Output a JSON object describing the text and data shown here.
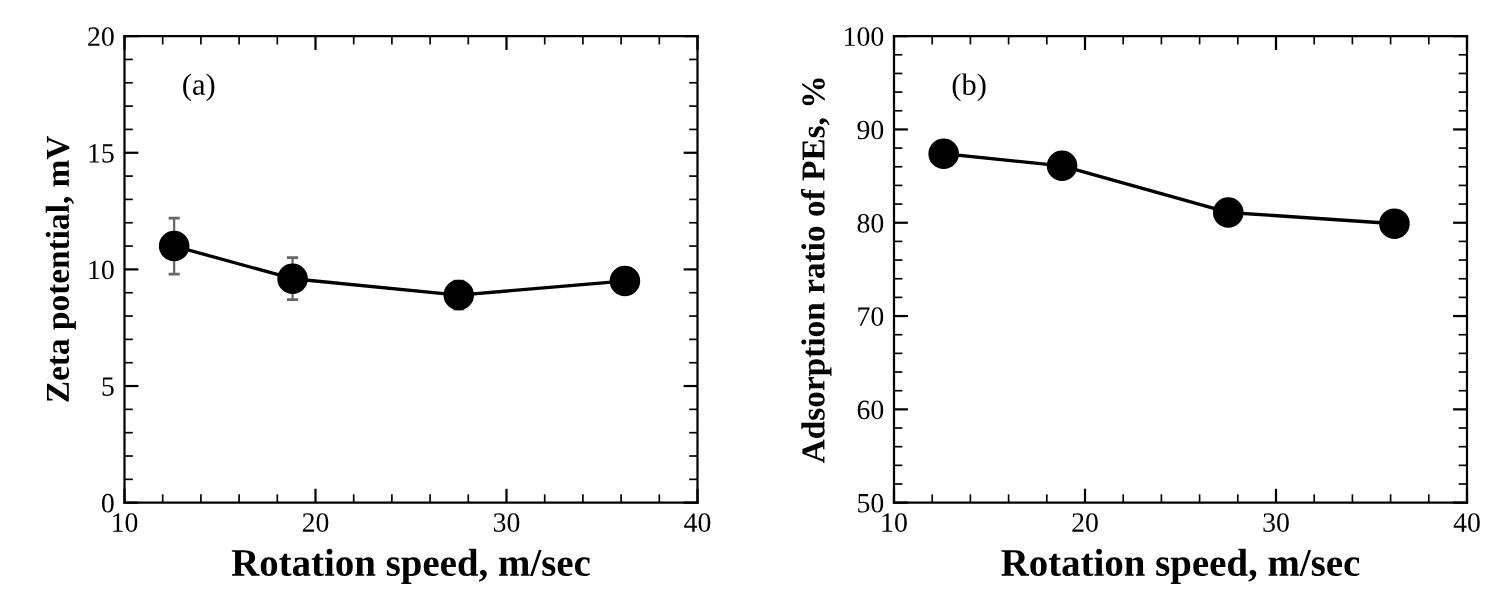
{
  "chart_data": [
    {
      "type": "line",
      "xlabel": "Rotation speed, m/sec",
      "ylabel": "Zeta potential, mV",
      "annotations": [
        "(a)"
      ],
      "x": [
        12.6,
        18.8,
        27.5,
        36.2
      ],
      "series": [
        {
          "color": "#000000",
          "values": [
            11.0,
            9.6,
            8.9,
            9.5
          ],
          "errors": [
            1.2,
            0.9,
            0.6,
            null
          ]
        }
      ],
      "xlim": [
        10,
        40
      ],
      "xticks": [
        10,
        20,
        30,
        40
      ],
      "ylim": [
        0,
        20
      ],
      "yticks": [
        0,
        5,
        10,
        15,
        20
      ],
      "marker": "circle",
      "line_style": "solid",
      "grid": false,
      "legend": false
    },
    {
      "type": "line",
      "xlabel": "Rotation speed, m/sec",
      "ylabel": "Adsorption ratio of PEs, %",
      "annotations": [
        "(b)"
      ],
      "x": [
        12.6,
        18.8,
        27.5,
        36.2
      ],
      "series": [
        {
          "color": "#000000",
          "values": [
            87.4,
            86.1,
            81.1,
            79.9
          ],
          "errors": [
            1.0,
            1.0,
            1.0,
            1.0
          ]
        }
      ],
      "xlim": [
        10,
        40
      ],
      "xticks": [
        10,
        20,
        30,
        40
      ],
      "ylim": [
        50,
        100
      ],
      "yticks": [
        50,
        60,
        70,
        80,
        90,
        100
      ],
      "marker": "circle",
      "line_style": "solid",
      "grid": false,
      "legend": false
    }
  ]
}
